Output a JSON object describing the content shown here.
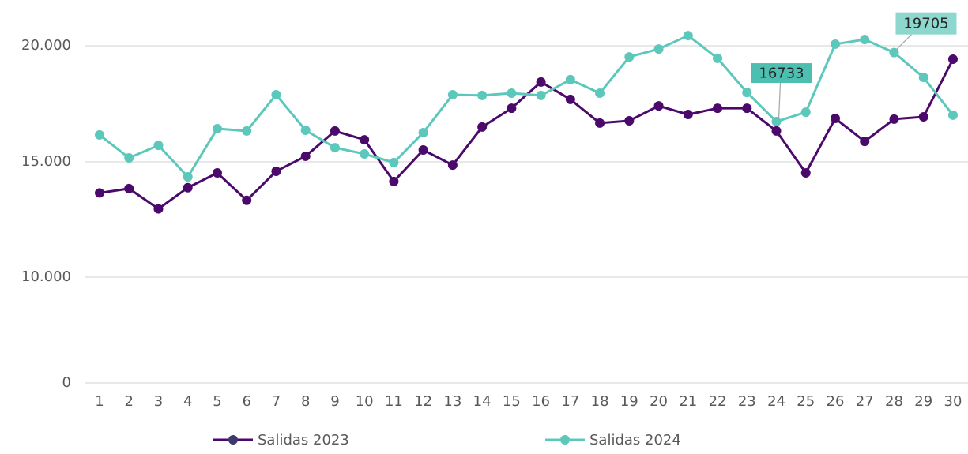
{
  "chart_data": {
    "type": "line",
    "categories": [
      "1",
      "2",
      "3",
      "4",
      "5",
      "6",
      "7",
      "8",
      "9",
      "10",
      "11",
      "12",
      "13",
      "14",
      "15",
      "16",
      "17",
      "18",
      "19",
      "20",
      "21",
      "22",
      "23",
      "24",
      "25",
      "26",
      "27",
      "28",
      "29",
      "30"
    ],
    "series": [
      {
        "name": "Salidas 2023",
        "color": "#4b0a6b",
        "values": [
          13650,
          13840,
          12960,
          13880,
          14520,
          13330,
          14590,
          15240,
          16330,
          15950,
          14150,
          15510,
          14860,
          16500,
          17310,
          18440,
          17690,
          16670,
          16770,
          17410,
          17040,
          17310,
          17310,
          16330,
          14520,
          16870,
          15880,
          16840,
          16940,
          19420
        ]
      },
      {
        "name": "Salidas 2024",
        "color": "#5cc8bb",
        "values": [
          16160,
          15170,
          15710,
          14350,
          16430,
          16330,
          17890,
          16360,
          15610,
          15340,
          14970,
          16260,
          17890,
          17860,
          17960,
          17860,
          18540,
          17960,
          19520,
          19860,
          20440,
          19460,
          17990,
          16733,
          17140,
          20070,
          20270,
          19705,
          18640,
          17010
        ],
        "value_labels": [
          null,
          null,
          null,
          null,
          null,
          null,
          null,
          null,
          null,
          null,
          null,
          null,
          null,
          null,
          null,
          null,
          null,
          null,
          null,
          null,
          null,
          null,
          null,
          "16733",
          null,
          null,
          null,
          "19705",
          null,
          null
        ]
      }
    ],
    "ylim": [
      0,
      21000
    ],
    "yticks": [
      0,
      {
        "value": 10000,
        "label": "10.000"
      },
      {
        "value": 15000,
        "label": "15.000"
      },
      {
        "value": 20000,
        "label": "20.000"
      }
    ],
    "grid": true,
    "legend": "bottom"
  }
}
